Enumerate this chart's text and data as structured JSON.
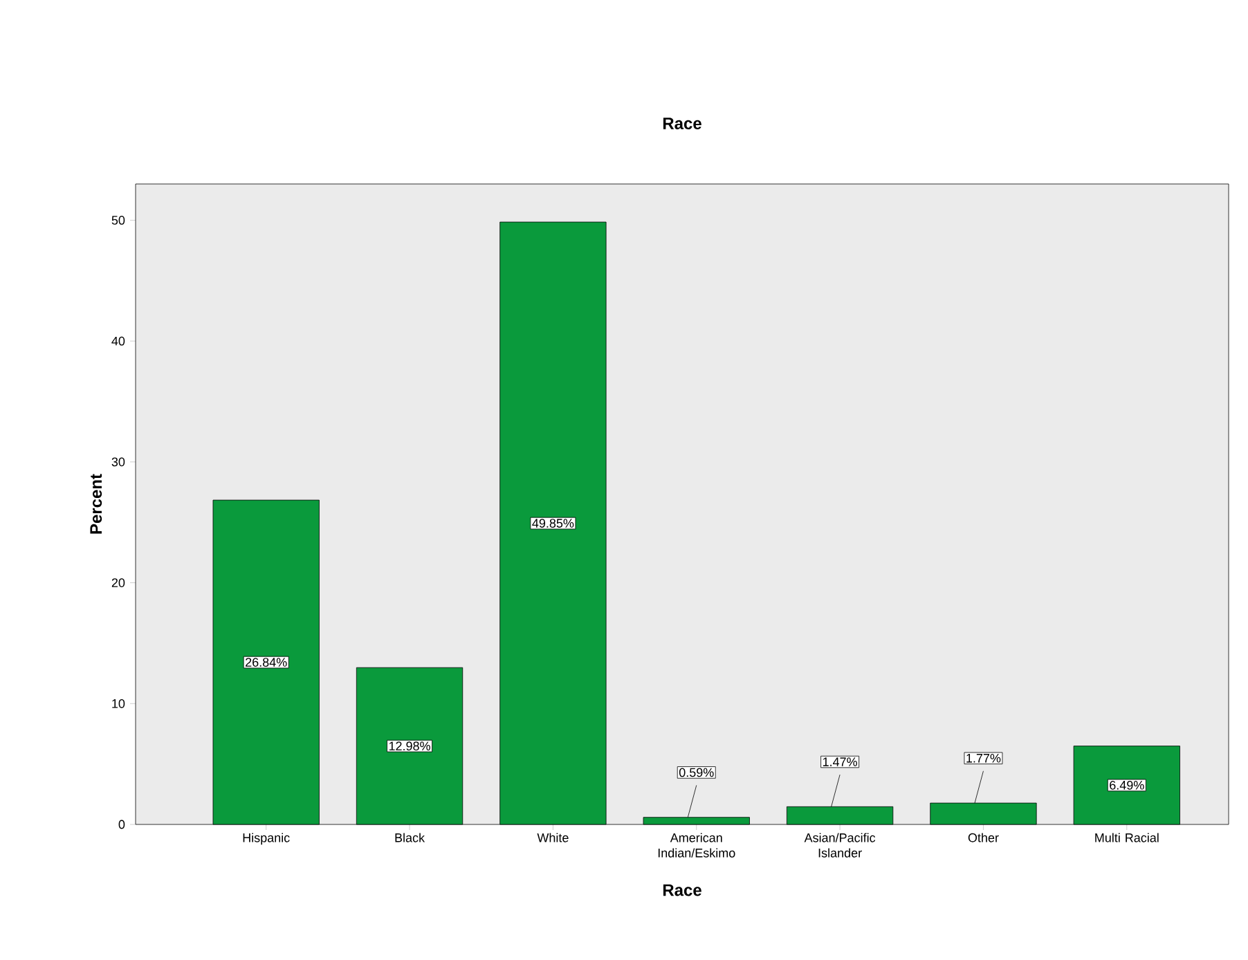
{
  "chart_data": {
    "type": "bar",
    "title": "Race",
    "xlabel": "Race",
    "ylabel": "Percent",
    "categories": [
      "Hispanic",
      "Black",
      "White",
      "American Indian/Eskimo",
      "Asian/Pacific Islander",
      "Other",
      "Multi Racial"
    ],
    "values": [
      26.84,
      12.98,
      49.85,
      0.59,
      1.47,
      1.77,
      6.49
    ],
    "value_labels": [
      "26.84%",
      "12.98%",
      "49.85%",
      "0.59%",
      "1.47%",
      "1.77%",
      "6.49%"
    ],
    "color": "#0a9a3c",
    "ylim": [
      0,
      53
    ],
    "yticks": [
      0,
      10,
      20,
      30,
      40,
      50
    ],
    "grid": false
  }
}
